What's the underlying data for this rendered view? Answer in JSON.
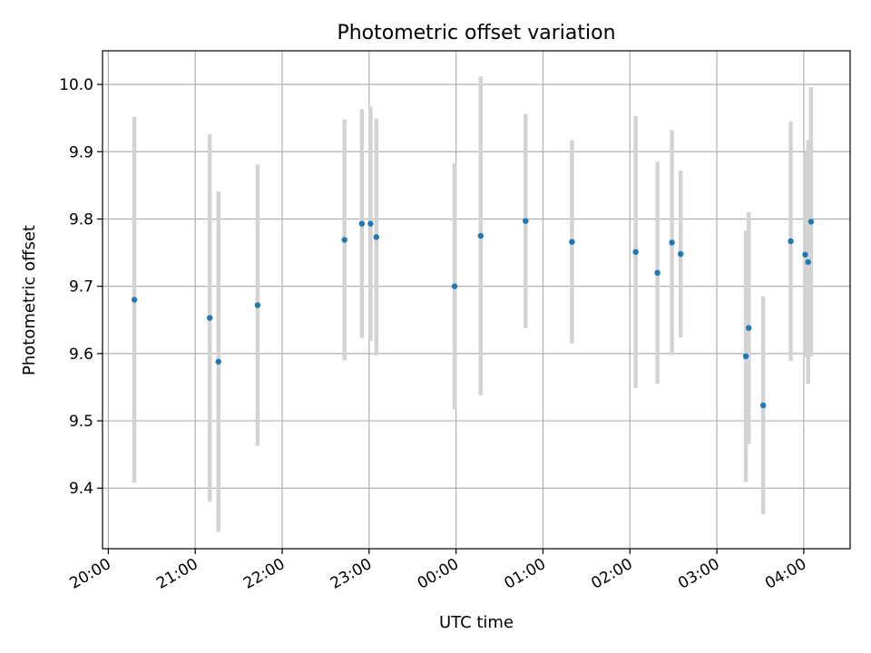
{
  "chart_data": {
    "type": "scatter",
    "title": "Photometric offset variation",
    "xlabel": "UTC time",
    "ylabel": "Photometric offset",
    "x_ticks": [
      "20:00",
      "21:00",
      "22:00",
      "23:00",
      "00:00",
      "01:00",
      "02:00",
      "03:00",
      "04:00"
    ],
    "y_ticks": [
      "9.4",
      "9.5",
      "9.6",
      "9.7",
      "9.8",
      "9.9",
      "10.0"
    ],
    "xlim": [
      "19:56",
      "04:32"
    ],
    "ylim": [
      9.31,
      10.05
    ],
    "grid": true,
    "marker_color": "#1f77b4",
    "errorbar_color": "#d3d3d3",
    "points": [
      {
        "t": "20:18",
        "y": 9.68,
        "err": 0.272
      },
      {
        "t": "21:10",
        "y": 9.653,
        "err": 0.273
      },
      {
        "t": "21:16",
        "y": 9.588,
        "err": 0.253
      },
      {
        "t": "21:43",
        "y": 9.672,
        "err": 0.209
      },
      {
        "t": "22:43",
        "y": 9.769,
        "err": 0.179
      },
      {
        "t": "22:55",
        "y": 9.793,
        "err": 0.17
      },
      {
        "t": "23:01",
        "y": 9.793,
        "err": 0.174
      },
      {
        "t": "23:05",
        "y": 9.773,
        "err": 0.176
      },
      {
        "t": "23:59",
        "y": 9.7,
        "err": 0.183
      },
      {
        "t": "00:17",
        "y": 9.775,
        "err": 0.237
      },
      {
        "t": "00:48",
        "y": 9.797,
        "err": 0.159
      },
      {
        "t": "01:20",
        "y": 9.766,
        "err": 0.151
      },
      {
        "t": "02:04",
        "y": 9.751,
        "err": 0.202
      },
      {
        "t": "02:19",
        "y": 9.72,
        "err": 0.165
      },
      {
        "t": "02:29",
        "y": 9.765,
        "err": 0.167
      },
      {
        "t": "02:35",
        "y": 9.748,
        "err": 0.124
      },
      {
        "t": "03:20",
        "y": 9.596,
        "err": 0.187
      },
      {
        "t": "03:22",
        "y": 9.638,
        "err": 0.172
      },
      {
        "t": "03:32",
        "y": 9.523,
        "err": 0.162
      },
      {
        "t": "03:51",
        "y": 9.767,
        "err": 0.178
      },
      {
        "t": "04:01",
        "y": 9.747,
        "err": 0.152
      },
      {
        "t": "04:03",
        "y": 9.736,
        "err": 0.181
      },
      {
        "t": "04:05",
        "y": 9.796,
        "err": 0.2
      }
    ]
  }
}
